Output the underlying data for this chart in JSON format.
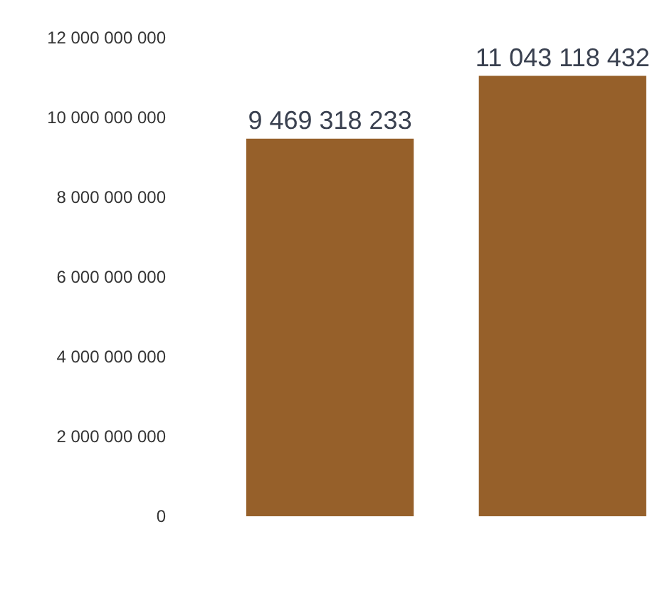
{
  "chart_data": {
    "type": "bar",
    "categories": [
      null,
      null
    ],
    "values": [
      9469318233,
      11043118432
    ],
    "value_labels": [
      "9 469 318 233",
      "11 043 118 432"
    ],
    "color": "#96602a",
    "ylim": [
      0,
      12000000000
    ],
    "yticks": [
      0,
      {
        "value": 2000000000,
        "label": "2 000 000 000"
      },
      {
        "value": 4000000000,
        "label": "4 000 000 000"
      },
      {
        "value": 6000000000,
        "label": "6 000 000 000"
      },
      {
        "value": 8000000000,
        "label": "8 000 000 000"
      },
      {
        "value": 10000000000,
        "label": "10 000 000 000"
      },
      {
        "value": 12000000000,
        "label": "12 000 000 000"
      }
    ]
  }
}
